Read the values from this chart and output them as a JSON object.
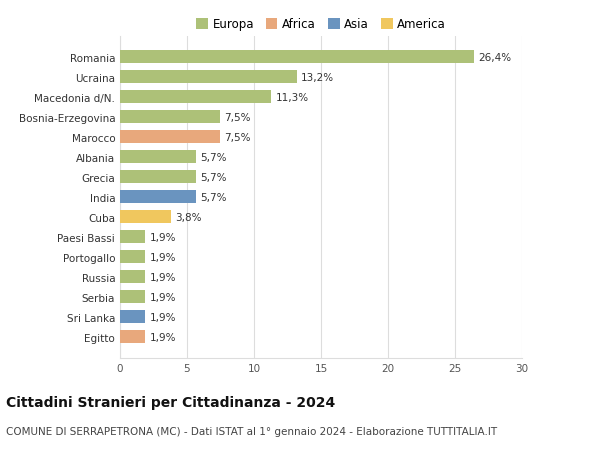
{
  "countries": [
    "Romania",
    "Ucraina",
    "Macedonia d/N.",
    "Bosnia-Erzegovina",
    "Marocco",
    "Albania",
    "Grecia",
    "India",
    "Cuba",
    "Paesi Bassi",
    "Portogallo",
    "Russia",
    "Serbia",
    "Sri Lanka",
    "Egitto"
  ],
  "values": [
    26.4,
    13.2,
    11.3,
    7.5,
    7.5,
    5.7,
    5.7,
    5.7,
    3.8,
    1.9,
    1.9,
    1.9,
    1.9,
    1.9,
    1.9
  ],
  "labels": [
    "26,4%",
    "13,2%",
    "11,3%",
    "7,5%",
    "7,5%",
    "5,7%",
    "5,7%",
    "5,7%",
    "3,8%",
    "1,9%",
    "1,9%",
    "1,9%",
    "1,9%",
    "1,9%",
    "1,9%"
  ],
  "continents": [
    "Europa",
    "Europa",
    "Europa",
    "Europa",
    "Africa",
    "Europa",
    "Europa",
    "Asia",
    "America",
    "Europa",
    "Europa",
    "Europa",
    "Europa",
    "Asia",
    "Africa"
  ],
  "colors": {
    "Europa": "#adc178",
    "Africa": "#e8a87c",
    "Asia": "#6a94bf",
    "America": "#f0c75e"
  },
  "xlim": [
    0,
    30
  ],
  "xticks": [
    0,
    5,
    10,
    15,
    20,
    25,
    30
  ],
  "title": "Cittadini Stranieri per Cittadinanza - 2024",
  "subtitle": "COMUNE DI SERRAPETRONA (MC) - Dati ISTAT al 1° gennaio 2024 - Elaborazione TUTTITALIA.IT",
  "background_color": "#ffffff",
  "grid_color": "#dddddd",
  "bar_height": 0.65,
  "title_fontsize": 10,
  "subtitle_fontsize": 7.5,
  "label_fontsize": 7.5,
  "tick_fontsize": 7.5,
  "legend_fontsize": 8.5
}
